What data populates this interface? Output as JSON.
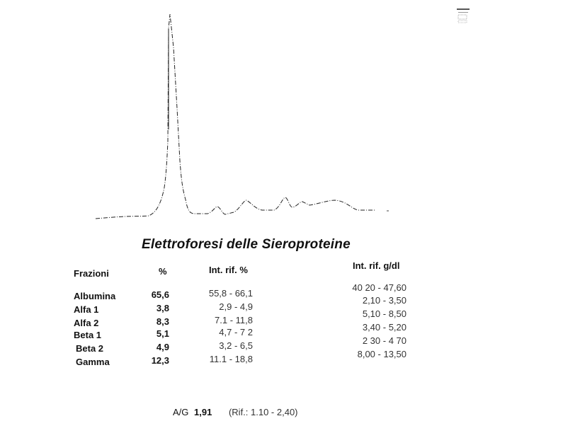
{
  "title": "Elettroforesi delle Sieroproteine",
  "table": {
    "headers": {
      "fraction": "Frazioni",
      "percent": "%",
      "ref_percent": "Int. rif. %",
      "ref_gdl": "Int. rif. g/dl"
    },
    "rows": [
      {
        "name": "Albumina",
        "percent": "65,6",
        "ref_percent": "55,8 - 66,1",
        "ref_gdl": "40 20 - 47,60"
      },
      {
        "name": "Alfa 1",
        "percent": "3,8",
        "ref_percent": "2,9 -  4,9",
        "ref_gdl": "2,10 - 3,50"
      },
      {
        "name": "Alfa 2",
        "percent": "8,3",
        "ref_percent": "7.1 - 11,8",
        "ref_gdl": "5,10 - 8,50"
      },
      {
        "name": "Beta 1",
        "percent": "5,1",
        "ref_percent": "4,7 -  7 2",
        "ref_gdl": "3,40 - 5,20"
      },
      {
        "name": "Beta 2",
        "percent": "4,9",
        "ref_percent": "3,2 -  6,5",
        "ref_gdl": "2 30 - 4 70"
      },
      {
        "name": "Gamma",
        "percent": "12,3",
        "ref_percent": "11.1 - 18,8",
        "ref_gdl": "8,00 - 13,50"
      }
    ]
  },
  "ratio": {
    "label": "A/G",
    "value": "1,91",
    "reference": "(Rif.: 1.10 - 2,40)"
  }
}
